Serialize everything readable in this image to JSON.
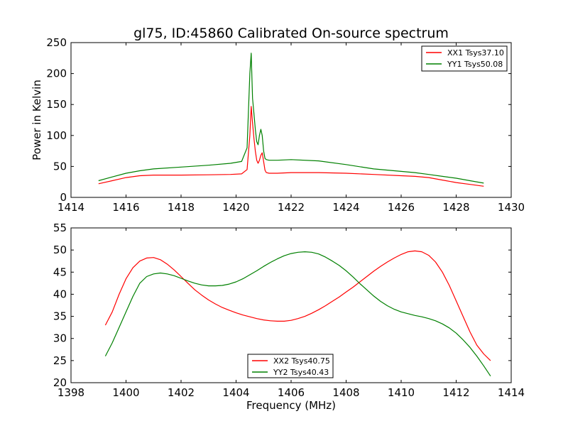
{
  "chart_data": [
    {
      "type": "line",
      "title": "gl75, ID:45860 Calibrated On-source spectrum",
      "xlabel": "",
      "ylabel": "Power in Kelvin",
      "xlim": [
        1414,
        1430
      ],
      "ylim": [
        0,
        250
      ],
      "xticks": [
        "1414",
        "1416",
        "1418",
        "1420",
        "1422",
        "1424",
        "1426",
        "1428",
        "1430"
      ],
      "yticks": [
        "0",
        "50",
        "100",
        "150",
        "200",
        "250"
      ],
      "legend_position": "top-right",
      "series": [
        {
          "name": "XX1 Tsys37.10",
          "color": "#ff0000",
          "x": [
            1415.0,
            1415.5,
            1416.0,
            1416.5,
            1417.0,
            1418.0,
            1419.0,
            1419.8,
            1420.2,
            1420.4,
            1420.5,
            1420.55,
            1420.6,
            1420.65,
            1420.7,
            1420.75,
            1420.8,
            1420.85,
            1420.9,
            1420.95,
            1421.0,
            1421.05,
            1421.1,
            1421.2,
            1421.5,
            1422.0,
            1423.0,
            1424.0,
            1425.0,
            1426.0,
            1426.5,
            1427.0,
            1427.5,
            1428.0,
            1428.5,
            1429.0
          ],
          "y": [
            22,
            27,
            32,
            35,
            36,
            36,
            36.5,
            37,
            38,
            45,
            100,
            147,
            120,
            95,
            75,
            60,
            55,
            60,
            68,
            72,
            58,
            44,
            40,
            39,
            39,
            40,
            40,
            39,
            37,
            35,
            34,
            32,
            28,
            24,
            21,
            18
          ]
        },
        {
          "name": "YY1 Tsys50.08",
          "color": "#008000",
          "x": [
            1415.0,
            1415.5,
            1416.0,
            1416.5,
            1417.0,
            1418.0,
            1419.0,
            1419.8,
            1420.2,
            1420.4,
            1420.5,
            1420.55,
            1420.6,
            1420.65,
            1420.7,
            1420.75,
            1420.8,
            1420.85,
            1420.9,
            1420.95,
            1421.0,
            1421.05,
            1421.1,
            1421.2,
            1421.5,
            1422.0,
            1423.0,
            1424.0,
            1425.0,
            1426.0,
            1426.5,
            1427.0,
            1427.5,
            1428.0,
            1428.5,
            1429.0
          ],
          "y": [
            27,
            33,
            39,
            43,
            46,
            49,
            52,
            55,
            58,
            80,
            200,
            233,
            160,
            135,
            110,
            90,
            85,
            100,
            110,
            100,
            75,
            63,
            61,
            60,
            60,
            61,
            59,
            53,
            46,
            42,
            40,
            37,
            34,
            31,
            27,
            23
          ]
        }
      ]
    },
    {
      "type": "line",
      "title": "",
      "xlabel": "Frequency (MHz)",
      "ylabel": "",
      "xlim": [
        1398,
        1414
      ],
      "ylim": [
        20,
        55
      ],
      "xticks": [
        "1398",
        "1400",
        "1402",
        "1404",
        "1406",
        "1408",
        "1410",
        "1412",
        "1414"
      ],
      "yticks": [
        "20",
        "25",
        "30",
        "35",
        "40",
        "45",
        "50",
        "55"
      ],
      "legend_position": "bottom-center",
      "series": [
        {
          "name": "XX2 Tsys40.75",
          "color": "#ff0000",
          "x": [
            1399.25,
            1399.5,
            1399.75,
            1400.0,
            1400.25,
            1400.5,
            1400.75,
            1401.0,
            1401.25,
            1401.5,
            1401.75,
            1402.0,
            1402.25,
            1402.5,
            1402.75,
            1403.0,
            1403.25,
            1403.5,
            1403.75,
            1404.0,
            1404.25,
            1404.5,
            1404.75,
            1405.0,
            1405.25,
            1405.5,
            1405.75,
            1406.0,
            1406.25,
            1406.5,
            1406.75,
            1407.0,
            1407.25,
            1407.5,
            1407.75,
            1408.0,
            1408.25,
            1408.5,
            1408.75,
            1409.0,
            1409.25,
            1409.5,
            1409.75,
            1410.0,
            1410.25,
            1410.5,
            1410.75,
            1411.0,
            1411.25,
            1411.5,
            1411.75,
            1412.0,
            1412.25,
            1412.5,
            1412.75,
            1413.0,
            1413.25
          ],
          "y": [
            33,
            36,
            40,
            43.5,
            46,
            47.5,
            48.2,
            48.3,
            47.8,
            46.8,
            45.5,
            44,
            42.5,
            41,
            39.8,
            38.7,
            37.8,
            37,
            36.4,
            35.8,
            35.3,
            34.9,
            34.5,
            34.2,
            34,
            33.9,
            33.9,
            34.1,
            34.5,
            35,
            35.7,
            36.5,
            37.4,
            38.4,
            39.4,
            40.5,
            41.6,
            42.8,
            44,
            45.2,
            46.3,
            47.3,
            48.2,
            49,
            49.6,
            49.8,
            49.6,
            48.8,
            47.3,
            45,
            42,
            38.5,
            35,
            31.5,
            28.5,
            26.5,
            25
          ]
        },
        {
          "name": "YY2 Tsys40.43",
          "color": "#008000",
          "x": [
            1399.25,
            1399.5,
            1399.75,
            1400.0,
            1400.25,
            1400.5,
            1400.75,
            1401.0,
            1401.25,
            1401.5,
            1401.75,
            1402.0,
            1402.25,
            1402.5,
            1402.75,
            1403.0,
            1403.25,
            1403.5,
            1403.75,
            1404.0,
            1404.25,
            1404.5,
            1404.75,
            1405.0,
            1405.25,
            1405.5,
            1405.75,
            1406.0,
            1406.25,
            1406.5,
            1406.75,
            1407.0,
            1407.25,
            1407.5,
            1407.75,
            1408.0,
            1408.25,
            1408.5,
            1408.75,
            1409.0,
            1409.25,
            1409.5,
            1409.75,
            1410.0,
            1410.25,
            1410.5,
            1410.75,
            1411.0,
            1411.25,
            1411.5,
            1411.75,
            1412.0,
            1412.25,
            1412.5,
            1412.75,
            1413.0,
            1413.25
          ],
          "y": [
            26,
            29,
            32.5,
            36,
            39.5,
            42.5,
            44,
            44.6,
            44.8,
            44.6,
            44.2,
            43.6,
            43,
            42.5,
            42.1,
            41.9,
            41.9,
            42,
            42.3,
            42.8,
            43.5,
            44.4,
            45.3,
            46.3,
            47.2,
            48,
            48.7,
            49.2,
            49.5,
            49.6,
            49.5,
            49.1,
            48.4,
            47.5,
            46.5,
            45.3,
            43.9,
            42.4,
            41,
            39.6,
            38.4,
            37.4,
            36.6,
            36,
            35.6,
            35.2,
            34.9,
            34.5,
            34,
            33.3,
            32.4,
            31.2,
            29.7,
            28,
            26,
            23.8,
            21.5
          ]
        }
      ]
    }
  ]
}
